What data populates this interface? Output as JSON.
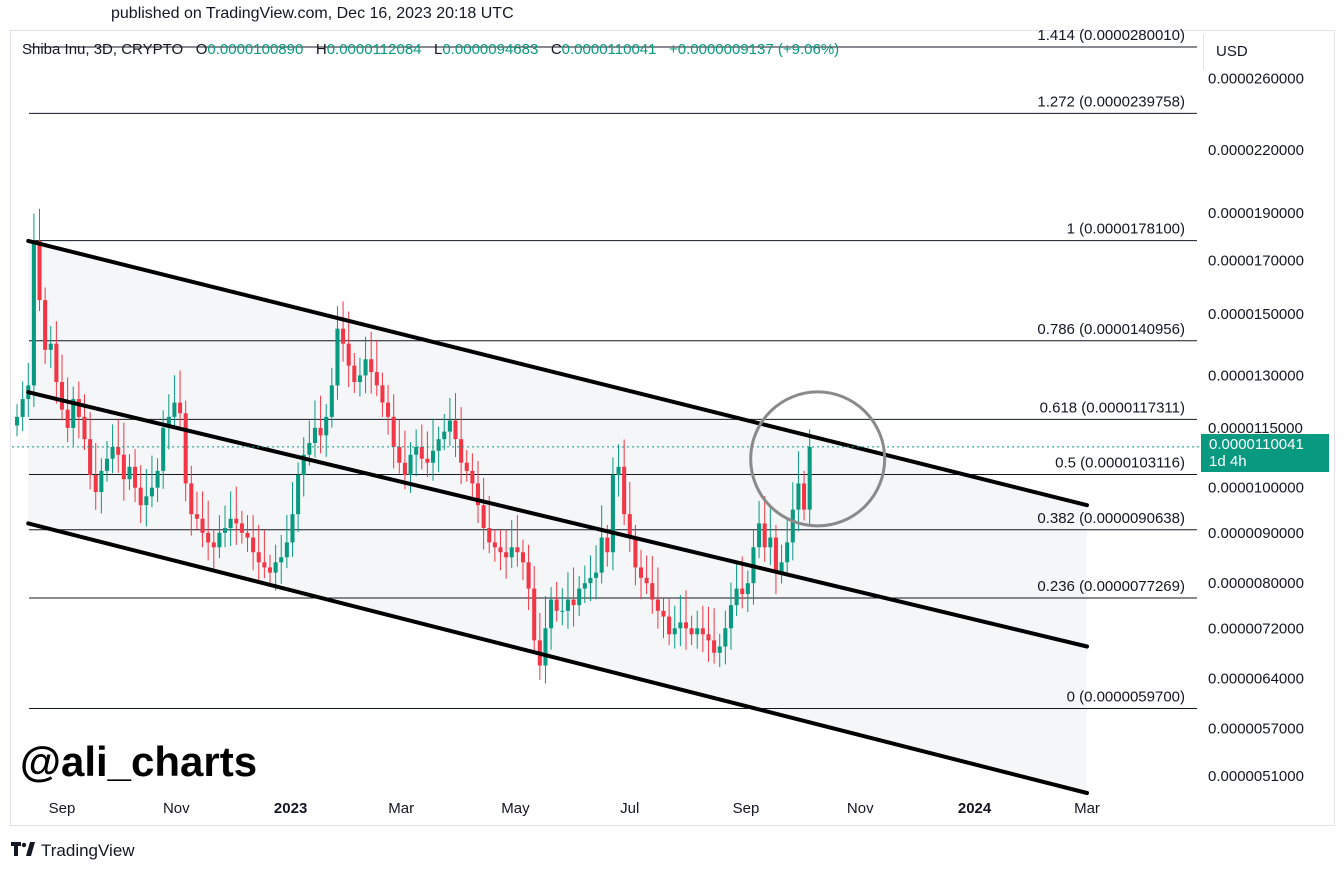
{
  "header": {
    "published": "published on TradingView.com, Dec 16, 2023 20:18 UTC"
  },
  "legend": {
    "symbol": "Shiba Inu, 3D, CRYPTO",
    "open_label": "O",
    "open": "0.0000100890",
    "high_label": "H",
    "high": "0.0000112084",
    "low_label": "L",
    "low": "0.0000094683",
    "close_label": "C",
    "close": "0.0000110041",
    "change": "+0.0000009137 (+9.06%)"
  },
  "price_axis": {
    "currency": "USD",
    "current_price": "0.0000110041",
    "countdown": "1d 4h"
  },
  "watermark": "@ali_charts",
  "footer": {
    "brand": "TradingView"
  },
  "colors": {
    "up": "#089981",
    "down": "#f23645",
    "channel_line": "#000000",
    "channel_fill": "#f5f6f8",
    "fib_line": "#131722"
  },
  "chart_data": {
    "type": "candlestick",
    "symbol": "Shiba Inu",
    "timeframe": "3D",
    "y_scale": "log",
    "ylim": [
      4.9e-06,
      2.9e-05
    ],
    "y_ticks": [
      "0.0000260000",
      "0.0000220000",
      "0.0000190000",
      "0.0000170000",
      "0.0000150000",
      "0.0000130000",
      "0.0000115000",
      "0.0000100000",
      "0.0000090000",
      "0.0000080000",
      "0.0000072000",
      "0.0000064000",
      "0.0000057000",
      "0.0000051000"
    ],
    "x_ticks": [
      {
        "label": "Sep",
        "date": "2022-09-01",
        "bold": false
      },
      {
        "label": "Nov",
        "date": "2022-11-01",
        "bold": false
      },
      {
        "label": "2023",
        "date": "2023-01-01",
        "bold": true
      },
      {
        "label": "Mar",
        "date": "2023-03-01",
        "bold": false
      },
      {
        "label": "May",
        "date": "2023-05-01",
        "bold": false
      },
      {
        "label": "Jul",
        "date": "2023-07-01",
        "bold": false
      },
      {
        "label": "Sep",
        "date": "2023-09-01",
        "bold": false
      },
      {
        "label": "Nov",
        "date": "2023-11-01",
        "bold": false
      },
      {
        "label": "2024",
        "date": "2024-01-01",
        "bold": true
      },
      {
        "label": "Mar",
        "date": "2024-03-01",
        "bold": false
      }
    ],
    "fibonacci": [
      {
        "level": "1.414",
        "price": 2.8001e-05,
        "label": "1.414 (0.0000280010)"
      },
      {
        "level": "1.272",
        "price": 2.39758e-05,
        "label": "1.272 (0.0000239758)"
      },
      {
        "level": "1",
        "price": 1.781e-05,
        "label": "1 (0.0000178100)"
      },
      {
        "level": "0.786",
        "price": 1.40956e-05,
        "label": "0.786 (0.0000140956)"
      },
      {
        "level": "0.618",
        "price": 1.17311e-05,
        "label": "0.618 (0.0000117311)"
      },
      {
        "level": "0.5",
        "price": 1.03116e-05,
        "label": "0.5 (0.0000103116)"
      },
      {
        "level": "0.382",
        "price": 9.0638e-06,
        "label": "0.382 (0.0000090638)"
      },
      {
        "level": "0.236",
        "price": 7.7269e-06,
        "label": "0.236 (0.0000077269)"
      },
      {
        "level": "0",
        "price": 5.97e-06,
        "label": "0 (0.0000059700)"
      }
    ],
    "channel": {
      "start_date": "2022-08-14",
      "end_date": "2024-03-01",
      "upper": [
        1.78e-05,
        9.6e-06
      ],
      "middle": [
        1.25e-05,
        6.9e-06
      ],
      "lower": [
        9.2e-06,
        4.9e-06
      ]
    },
    "candles_start_date": "2022-08-08",
    "candle_interval_days": 3,
    "closes": [
      1.18e-05,
      1.23e-05,
      1.27e-05,
      1.78e-05,
      1.55e-05,
      1.38e-05,
      1.4e-05,
      1.28e-05,
      1.2e-05,
      1.15e-05,
      1.23e-05,
      1.18e-05,
      1.12e-05,
      1.03e-05,
      9.9e-06,
      1.04e-05,
      1.07e-05,
      1.1e-05,
      1.08e-05,
      1.02e-05,
      1.05e-05,
      1e-05,
      9.6e-06,
      9.8e-06,
      1e-05,
      1.04e-05,
      1.15e-05,
      1.18e-05,
      1.22e-05,
      1.19e-05,
      1.01e-05,
      9.4e-06,
      9.3e-06,
      9e-06,
      8.8e-06,
      8.7e-06,
      9e-06,
      9.1e-06,
      9.3e-06,
      9.2e-06,
      9e-06,
      8.9e-06,
      8.6e-06,
      8.4e-06,
      8.3e-06,
      8.2e-06,
      8.4e-06,
      8.5e-06,
      8.8e-06,
      9.4e-06,
      1.03e-05,
      1.08e-05,
      1.11e-05,
      1.15e-05,
      1.13e-05,
      1.18e-05,
      1.27e-05,
      1.45e-05,
      1.4e-05,
      1.33e-05,
      1.28e-05,
      1.3e-05,
      1.35e-05,
      1.31e-05,
      1.27e-05,
      1.22e-05,
      1.18e-05,
      1.1e-05,
      1.06e-05,
      1.03e-05,
      1.08e-05,
      1.1e-05,
      1.07e-05,
      1.06e-05,
      1.09e-05,
      1.12e-05,
      1.14e-05,
      1.17e-05,
      1.12e-05,
      1.06e-05,
      1.04e-05,
      1.01e-05,
      9.6e-06,
      9.1e-06,
      8.8e-06,
      8.7e-06,
      8.6e-06,
      8.5e-06,
      8.7e-06,
      8.6e-06,
      8.4e-06,
      7.9e-06,
      7e-06,
      6.6e-06,
      7.2e-06,
      7.7e-06,
      7.5e-06,
      7.5e-06,
      7.7e-06,
      7.6e-06,
      7.9e-06,
      8e-06,
      8.1e-06,
      8.2e-06,
      8.9e-06,
      8.6e-06,
      1.03e-05,
      1.05e-05,
      9.4e-06,
      8.9e-06,
      8.3e-06,
      8.1e-06,
      8e-06,
      7.7e-06,
      7.5e-06,
      7.4e-06,
      7.1e-06,
      7.2e-06,
      7.3e-06,
      7.2e-06,
      7.1e-06,
      7.2e-06,
      7.1e-06,
      7e-06,
      6.8e-06,
      6.9e-06,
      7.2e-06,
      7.6e-06,
      7.9e-06,
      7.8e-06,
      8e-06,
      8.7e-06,
      9.2e-06,
      8.7e-06,
      8.9e-06,
      8.2e-06,
      8.4e-06,
      8.8e-06,
      9.5e-06,
      1.01e-05,
      9.5e-06,
      1.1e-05
    ]
  }
}
